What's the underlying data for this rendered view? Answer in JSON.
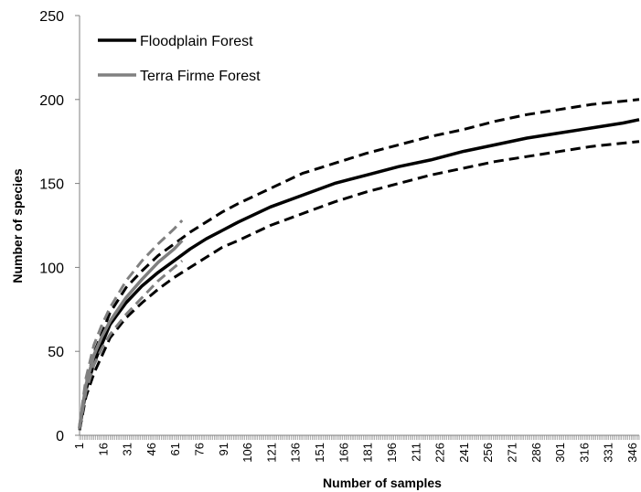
{
  "chart_data": {
    "type": "line",
    "xlabel": "Number of samples",
    "ylabel": "Number of species",
    "ylim": [
      0,
      250
    ],
    "yticks": [
      0,
      50,
      100,
      150,
      200,
      250
    ],
    "xlim": [
      1,
      350
    ],
    "xtick_labels": [
      "1",
      "16",
      "31",
      "46",
      "61",
      "76",
      "91",
      "106",
      "121",
      "136",
      "151",
      "166",
      "181",
      "196",
      "211",
      "226",
      "241",
      "256",
      "271",
      "286",
      "301",
      "316",
      "331",
      "346"
    ],
    "grid": false,
    "legend_position": "top-left",
    "legend": [
      {
        "name": "Floodplain Forest",
        "color": "#000000"
      },
      {
        "name": "Terra Firme Forest",
        "color": "#808080"
      }
    ],
    "series": [
      {
        "name": "Floodplain Forest",
        "color": "#000000",
        "style": "solid",
        "x": [
          1,
          5,
          10,
          20,
          30,
          40,
          50,
          60,
          70,
          80,
          90,
          100,
          120,
          140,
          160,
          180,
          200,
          220,
          240,
          260,
          280,
          300,
          320,
          340,
          350
        ],
        "y": [
          4,
          27,
          43,
          66,
          79,
          89,
          97,
          104,
          111,
          117,
          122,
          127,
          136,
          143,
          150,
          155,
          160,
          164,
          169,
          173,
          177,
          180,
          183,
          186,
          188
        ]
      },
      {
        "name": "Floodplain Forest upper CI",
        "color": "#000000",
        "style": "dashed",
        "x": [
          1,
          5,
          10,
          20,
          30,
          40,
          50,
          60,
          70,
          80,
          90,
          100,
          120,
          140,
          160,
          180,
          200,
          220,
          240,
          260,
          280,
          300,
          320,
          340,
          350
        ],
        "y": [
          5,
          31,
          49,
          73,
          88,
          98,
          107,
          114,
          121,
          127,
          133,
          138,
          147,
          156,
          162,
          168,
          173,
          178,
          182,
          187,
          191,
          194,
          197,
          199,
          200
        ]
      },
      {
        "name": "Floodplain Forest lower CI",
        "color": "#000000",
        "style": "dashed",
        "x": [
          1,
          5,
          10,
          20,
          30,
          40,
          50,
          60,
          70,
          80,
          90,
          100,
          120,
          140,
          160,
          180,
          200,
          220,
          240,
          260,
          280,
          300,
          320,
          340,
          350
        ],
        "y": [
          3,
          23,
          37,
          58,
          70,
          79,
          87,
          94,
          100,
          106,
          112,
          116,
          125,
          132,
          139,
          145,
          150,
          155,
          159,
          163,
          166,
          169,
          172,
          174,
          175
        ]
      },
      {
        "name": "Terra Firme Forest",
        "color": "#808080",
        "style": "solid",
        "x": [
          1,
          5,
          10,
          15,
          20,
          30,
          40,
          50,
          60,
          65
        ],
        "y": [
          5,
          30,
          48,
          59,
          68,
          82,
          93,
          103,
          111,
          116
        ]
      },
      {
        "name": "Terra Firme Forest upper CI",
        "color": "#808080",
        "style": "dashed",
        "x": [
          1,
          5,
          10,
          15,
          20,
          30,
          40,
          50,
          60,
          65
        ],
        "y": [
          6,
          34,
          54,
          66,
          76,
          92,
          104,
          114,
          123,
          128
        ]
      },
      {
        "name": "Terra Firme Forest lower CI",
        "color": "#808080",
        "style": "dashed",
        "x": [
          1,
          5,
          10,
          15,
          20,
          30,
          40,
          50,
          60,
          65
        ],
        "y": [
          4,
          26,
          42,
          52,
          60,
          72,
          82,
          92,
          100,
          104
        ]
      }
    ]
  }
}
